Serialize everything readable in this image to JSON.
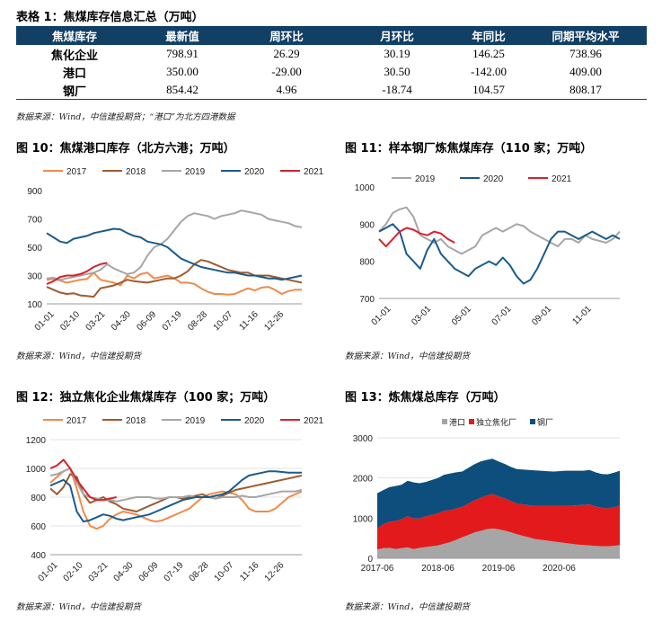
{
  "table1": {
    "title": "表格 1：焦煤库存信息汇总（万吨）",
    "headers": [
      "焦煤库存",
      "最新值",
      "周环比",
      "月环比",
      "年同比",
      "同期平均水平"
    ],
    "rows": [
      [
        "焦化企业",
        "798.91",
        "26.29",
        "30.19",
        "146.25",
        "738.96"
      ],
      [
        "港口",
        "350.00",
        "-29.00",
        "30.50",
        "-142.00",
        "409.00"
      ],
      [
        "钢厂",
        "854.42",
        "4.96",
        "-18.74",
        "104.57",
        "808.17"
      ]
    ],
    "source": "数据来源：Wind，中信建投期货；“港口”为北方四港数据"
  },
  "colors": {
    "c2017": "#f08a4b",
    "c2018": "#9e5b2e",
    "c2019": "#a6a6a6",
    "c2020": "#1b5b8a",
    "c2021": "#d7222e",
    "port": "#a6a6a6",
    "coke": "#e31a1c",
    "steel": "#0d4e7c"
  },
  "fig10": {
    "title": "图 10：焦煤港口库存（北方六港；万吨）",
    "source": "数据来源：Wind，中信建投期货",
    "chart_data": {
      "type": "line",
      "legend": [
        "2017",
        "2018",
        "2019",
        "2020",
        "2021"
      ],
      "ylim": [
        100,
        900
      ],
      "yticks": [
        "100",
        "300",
        "500",
        "700",
        "900"
      ],
      "xticks": [
        "01-01",
        "02-10",
        "03-21",
        "04-30",
        "06-09",
        "07-19",
        "08-28",
        "10-07",
        "11-16",
        "12-26"
      ],
      "series": [
        {
          "name": "2017",
          "values": [
            270,
            275,
            265,
            250,
            260,
            270,
            275,
            320,
            270,
            260,
            250,
            230,
            300,
            280,
            310,
            320,
            280,
            290,
            300,
            280,
            250,
            250,
            240,
            210,
            185,
            170,
            170,
            165,
            170,
            190,
            210,
            195,
            215,
            220,
            200,
            170,
            190,
            200,
            200
          ]
        },
        {
          "name": "2018",
          "values": [
            220,
            200,
            180,
            170,
            175,
            160,
            155,
            150,
            210,
            220,
            230,
            250,
            270,
            260,
            255,
            250,
            260,
            270,
            280,
            280,
            300,
            330,
            380,
            410,
            400,
            380,
            360,
            340,
            330,
            320,
            320,
            300,
            300,
            300,
            290,
            280,
            270,
            260,
            250
          ]
        },
        {
          "name": "2019",
          "values": [
            280,
            285,
            270,
            280,
            290,
            300,
            310,
            320,
            340,
            380,
            350,
            330,
            310,
            320,
            360,
            440,
            500,
            520,
            560,
            620,
            680,
            720,
            740,
            730,
            720,
            700,
            720,
            730,
            740,
            760,
            750,
            740,
            730,
            700,
            690,
            680,
            670,
            650,
            640
          ]
        },
        {
          "name": "2020",
          "values": [
            600,
            570,
            540,
            530,
            560,
            570,
            580,
            600,
            610,
            620,
            630,
            625,
            600,
            580,
            570,
            540,
            530,
            520,
            500,
            460,
            420,
            400,
            380,
            360,
            350,
            340,
            330,
            320,
            320,
            310,
            300,
            300,
            290,
            280,
            280,
            270,
            280,
            290,
            300
          ]
        },
        {
          "name": "2021",
          "values": [
            240,
            260,
            290,
            300,
            300,
            310,
            330,
            360,
            380,
            390
          ]
        }
      ]
    }
  },
  "fig11": {
    "title": "图 11：样本钢厂炼焦煤库存（110 家；万吨）",
    "source": "数据来源：Wind，中信建投期货",
    "chart_data": {
      "type": "line",
      "legend": [
        "2019",
        "2020",
        "2021"
      ],
      "ylim": [
        700,
        1000
      ],
      "yticks": [
        "700",
        "800",
        "900",
        "1000"
      ],
      "xticks": [
        "01-01",
        "03-01",
        "05-01",
        "07-01",
        "09-01",
        "11-01"
      ],
      "series": [
        {
          "name": "2019",
          "values": [
            880,
            900,
            930,
            940,
            945,
            920,
            870,
            860,
            850,
            860,
            840,
            830,
            820,
            830,
            840,
            870,
            880,
            890,
            880,
            890,
            900,
            895,
            880,
            870,
            860,
            850,
            840,
            860,
            860,
            850,
            870,
            860,
            855,
            850,
            860,
            880
          ]
        },
        {
          "name": "2020",
          "values": [
            880,
            890,
            900,
            880,
            820,
            800,
            780,
            830,
            860,
            820,
            800,
            780,
            770,
            760,
            780,
            790,
            800,
            790,
            810,
            790,
            760,
            740,
            750,
            780,
            820,
            860,
            880,
            880,
            870,
            860,
            870,
            880,
            870,
            860,
            870,
            860
          ]
        },
        {
          "name": "2021",
          "values": [
            860,
            840,
            860,
            880,
            890,
            885,
            875,
            870,
            880,
            875,
            860,
            850
          ]
        }
      ]
    }
  },
  "fig12": {
    "title": "图 12：独立焦化企业焦煤库存（100 家；万吨）",
    "source": "数据来源：Wind，中信建投期货",
    "chart_data": {
      "type": "line",
      "legend": [
        "2017",
        "2018",
        "2019",
        "2020",
        "2021"
      ],
      "ylim": [
        400,
        1200
      ],
      "yticks": [
        "400",
        "600",
        "800",
        "1000",
        "1200"
      ],
      "xticks": [
        "01-01",
        "02-10",
        "03-21",
        "04-30",
        "06-09",
        "07-19",
        "08-28",
        "10-07",
        "11-16",
        "12-26"
      ],
      "series": [
        {
          "name": "2017",
          "values": [
            900,
            940,
            980,
            1000,
            860,
            700,
            600,
            580,
            600,
            650,
            680,
            700,
            690,
            680,
            660,
            640,
            630,
            640,
            660,
            680,
            700,
            720,
            760,
            800,
            820,
            830,
            840,
            830,
            820,
            780,
            720,
            700,
            700,
            700,
            720,
            760,
            800,
            820,
            840
          ]
        },
        {
          "name": "2018",
          "values": [
            860,
            820,
            870,
            960,
            940,
            820,
            760,
            780,
            800,
            770,
            750,
            720,
            710,
            700,
            720,
            740,
            760,
            780,
            800,
            800,
            790,
            800,
            810,
            820,
            800,
            790,
            810,
            830,
            850,
            860,
            870,
            880,
            890,
            900,
            910,
            920,
            930,
            940,
            950
          ]
        },
        {
          "name": "2019",
          "values": [
            950,
            960,
            980,
            1000,
            900,
            820,
            800,
            790,
            780,
            780,
            770,
            780,
            790,
            800,
            800,
            800,
            790,
            790,
            800,
            800,
            800,
            810,
            800,
            800,
            800,
            790,
            800,
            800,
            800,
            810,
            800,
            800,
            810,
            820,
            830,
            840,
            840,
            840,
            850
          ]
        },
        {
          "name": "2020",
          "values": [
            880,
            900,
            920,
            880,
            700,
            630,
            640,
            660,
            680,
            670,
            650,
            640,
            650,
            660,
            670,
            680,
            700,
            720,
            740,
            760,
            780,
            790,
            800,
            800,
            800,
            810,
            820,
            840,
            880,
            920,
            950,
            960,
            970,
            980,
            980,
            975,
            970,
            970,
            970
          ]
        },
        {
          "name": "2021",
          "values": [
            1000,
            1020,
            1060,
            1000,
            920,
            860,
            800,
            780,
            780,
            790,
            800
          ]
        }
      ]
    }
  },
  "fig13": {
    "title": "图 13：炼焦煤总库存（万吨）",
    "source": "数据来源：Wind，中信建投期货",
    "chart_data": {
      "type": "area",
      "stacked": true,
      "legend": [
        "港口",
        "独立焦化厂",
        "钢厂"
      ],
      "ylim": [
        0,
        3000
      ],
      "yticks": [
        "0",
        "1000",
        "2000",
        "3000"
      ],
      "xticks": [
        "2017-06",
        "2018-06",
        "2019-06",
        "2020-06"
      ],
      "x_start_year": 2017.4,
      "x_end_year": 2021.4,
      "series": [
        {
          "name": "港口",
          "values": [
            220,
            250,
            260,
            230,
            250,
            270,
            230,
            260,
            280,
            300,
            320,
            360,
            400,
            460,
            520,
            580,
            640,
            680,
            720,
            740,
            720,
            690,
            650,
            600,
            560,
            520,
            480,
            460,
            440,
            420,
            400,
            380,
            360,
            340,
            330,
            320,
            310,
            300,
            300,
            310,
            330
          ]
        },
        {
          "name": "独立焦化厂",
          "values": [
            520,
            600,
            650,
            700,
            720,
            780,
            760,
            730,
            760,
            780,
            800,
            820,
            800,
            780,
            760,
            780,
            800,
            820,
            840,
            860,
            820,
            800,
            780,
            760,
            780,
            800,
            820,
            840,
            860,
            880,
            900,
            920,
            950,
            980,
            1000,
            1020,
            980,
            960,
            940,
            960,
            980
          ]
        },
        {
          "name": "钢厂",
          "values": [
            880,
            850,
            860,
            870,
            860,
            880,
            900,
            880,
            860,
            870,
            880,
            900,
            910,
            900,
            880,
            890,
            900,
            910,
            890,
            880,
            870,
            860,
            850,
            860,
            870,
            880,
            890,
            880,
            870,
            860,
            870,
            880,
            870,
            860,
            850,
            860,
            850,
            840,
            850,
            860,
            870
          ]
        }
      ]
    }
  }
}
